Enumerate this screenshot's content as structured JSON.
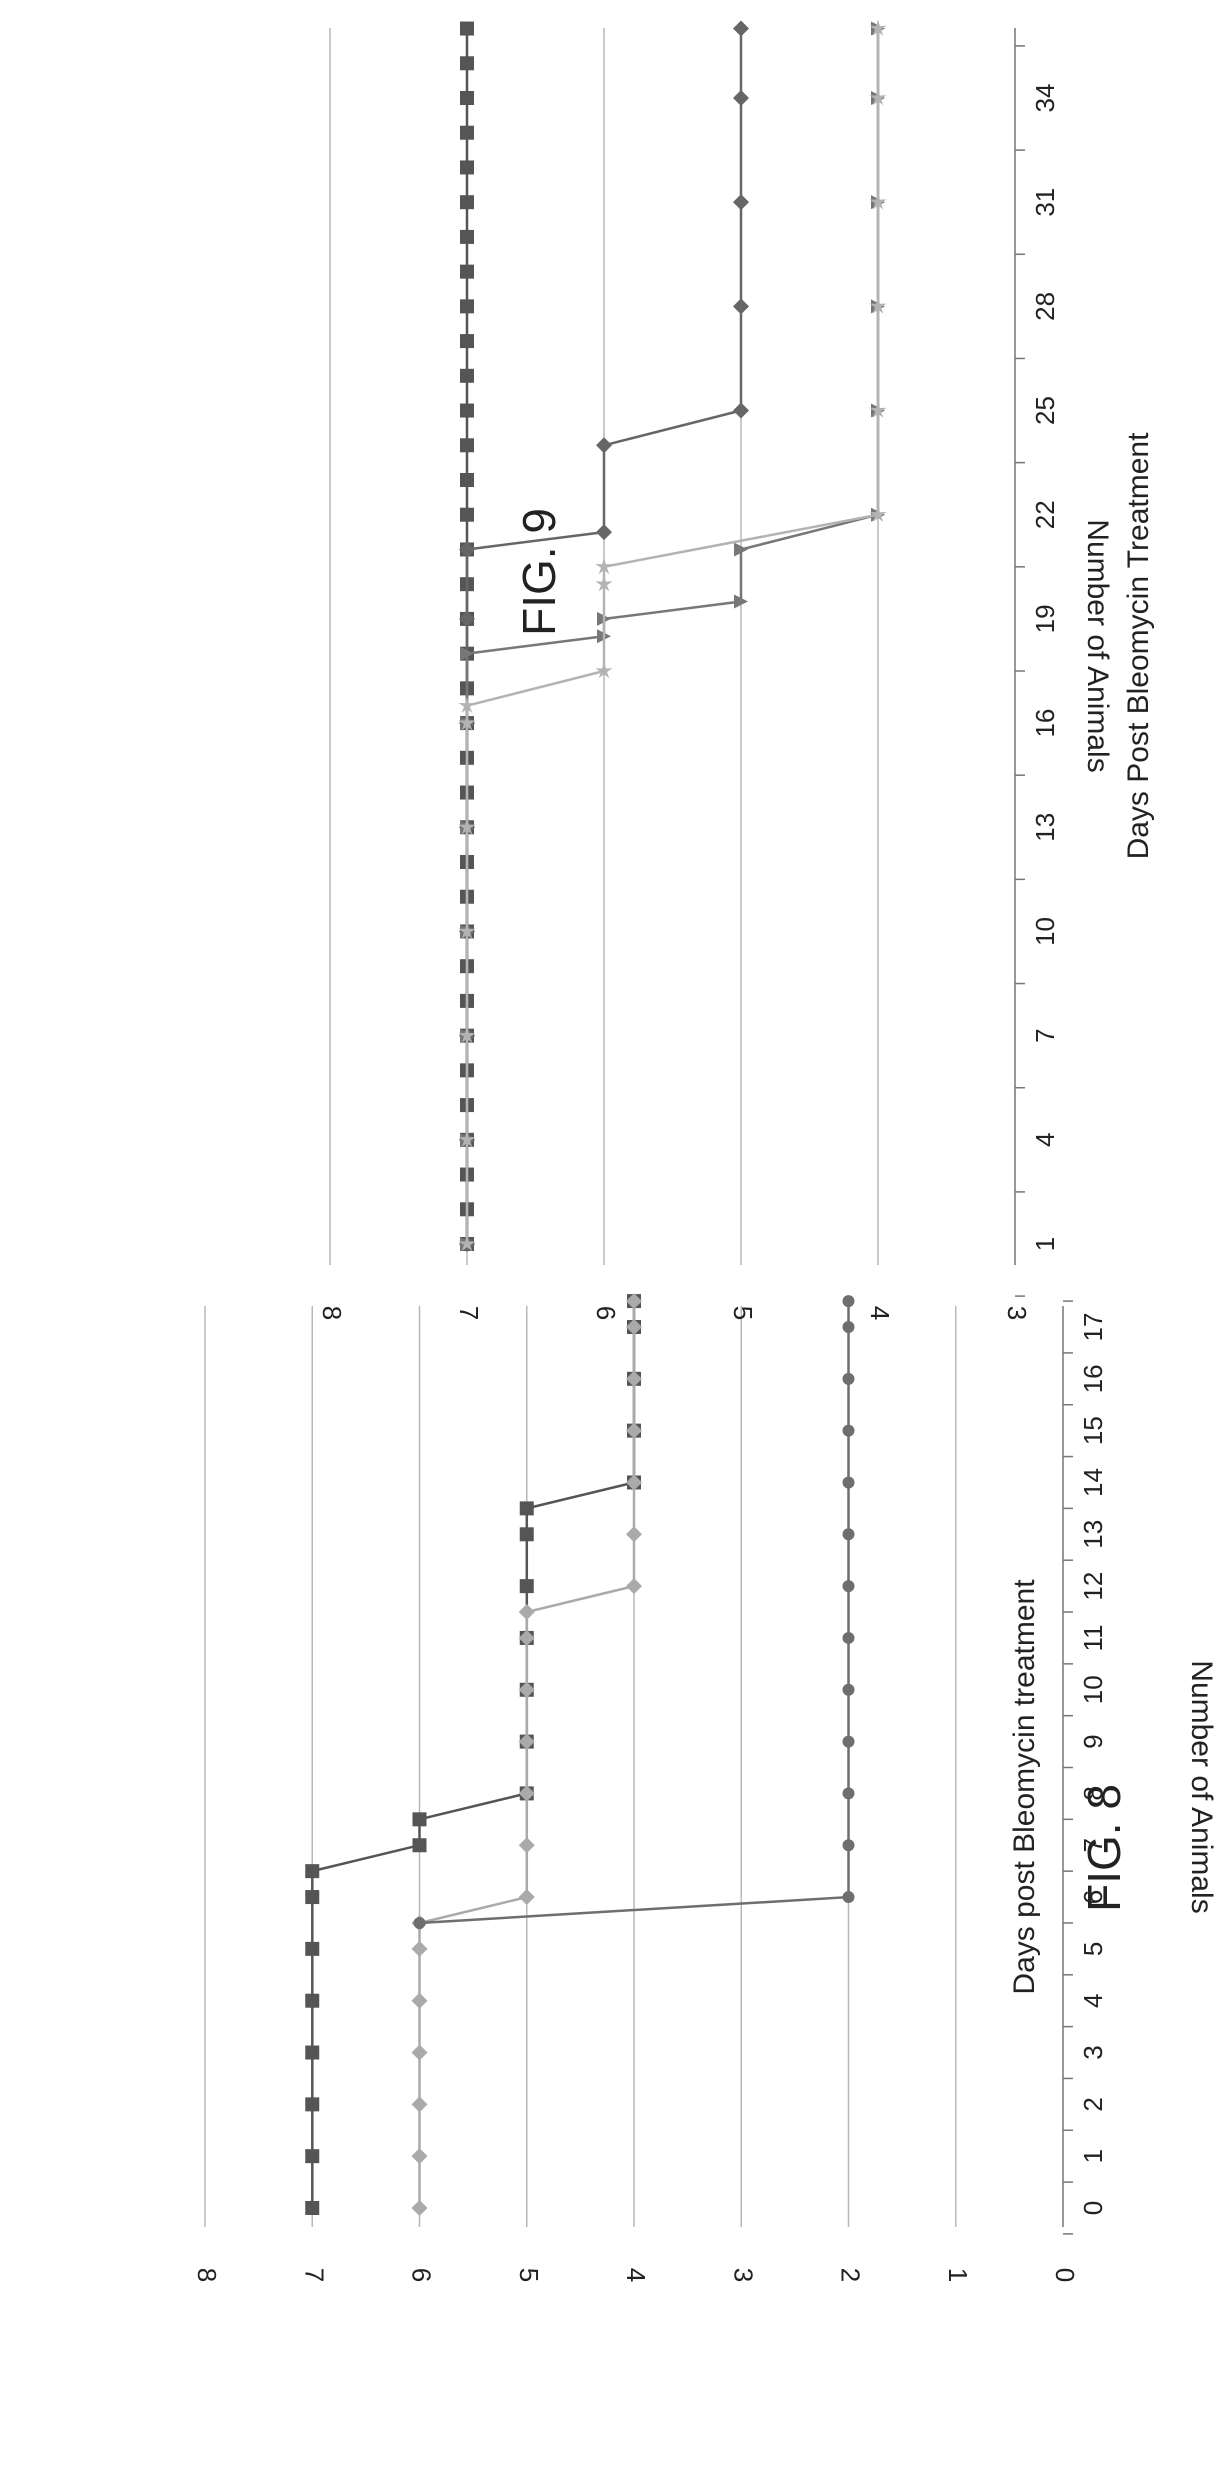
{
  "figures": [
    {
      "id": "fig8",
      "title": "FIG. 8",
      "chart_data": {
        "type": "line",
        "xlabel": "Days post Bleomycin treatment",
        "ylabel": "Number of Animals",
        "x": [
          0,
          1,
          2,
          3,
          4,
          5,
          6,
          7,
          8,
          9,
          10,
          11,
          12,
          13,
          14,
          15,
          16,
          17
        ],
        "ylim": [
          0,
          8
        ],
        "yticks": [
          0,
          1,
          2,
          3,
          4,
          5,
          6,
          7,
          8
        ],
        "grid": true,
        "series": [
          {
            "color": "#555555",
            "marker": "square",
            "points": [
              [
                0,
                7
              ],
              [
                1,
                7
              ],
              [
                2,
                7
              ],
              [
                3,
                7
              ],
              [
                4,
                7
              ],
              [
                5,
                7
              ],
              [
                6,
                7
              ],
              [
                6.5,
                7
              ],
              [
                7,
                6
              ],
              [
                7.5,
                6
              ],
              [
                8,
                5
              ],
              [
                9,
                5
              ],
              [
                10,
                5
              ],
              [
                11,
                5
              ],
              [
                12,
                5
              ],
              [
                13,
                5
              ],
              [
                13.5,
                5
              ],
              [
                14,
                4
              ],
              [
                15,
                4
              ],
              [
                16,
                4
              ],
              [
                17,
                4
              ],
              [
                17.5,
                4
              ]
            ]
          },
          {
            "color": "#aaaaaa",
            "marker": "diamond",
            "points": [
              [
                0,
                6
              ],
              [
                1,
                6
              ],
              [
                2,
                6
              ],
              [
                3,
                6
              ],
              [
                4,
                6
              ],
              [
                5,
                6
              ],
              [
                5.5,
                6
              ],
              [
                6,
                5
              ],
              [
                7,
                5
              ],
              [
                8,
                5
              ],
              [
                9,
                5
              ],
              [
                10,
                5
              ],
              [
                11,
                5
              ],
              [
                11.5,
                5
              ],
              [
                12,
                4
              ],
              [
                13,
                4
              ],
              [
                14,
                4
              ],
              [
                15,
                4
              ],
              [
                16,
                4
              ],
              [
                17,
                4
              ],
              [
                17.5,
                4
              ]
            ]
          },
          {
            "color": "#6e6e6e",
            "marker": "dot",
            "points": [
              [
                5.5,
                6
              ],
              [
                6,
                2
              ],
              [
                7,
                2
              ],
              [
                8,
                2
              ],
              [
                9,
                2
              ],
              [
                10,
                2
              ],
              [
                11,
                2
              ],
              [
                12,
                2
              ],
              [
                13,
                2
              ],
              [
                14,
                2
              ],
              [
                15,
                2
              ],
              [
                16,
                2
              ],
              [
                17,
                2
              ],
              [
                17.5,
                2
              ]
            ]
          }
        ]
      }
    },
    {
      "id": "fig9",
      "title": "FIG. 9",
      "chart_data": {
        "type": "line",
        "xlabel": "Days Post Bleomycin Treatment",
        "ylabel": "Number of Animals",
        "x": [
          1,
          4,
          7,
          10,
          13,
          16,
          19,
          22,
          25,
          28,
          31,
          34
        ],
        "ylim": [
          3,
          8
        ],
        "yticks": [
          3,
          4,
          5,
          6,
          7,
          8
        ],
        "grid": true,
        "series": [
          {
            "color": "#555555",
            "marker": "square",
            "points": [
              [
                1,
                7
              ],
              [
                2,
                7
              ],
              [
                3,
                7
              ],
              [
                4,
                7
              ],
              [
                5,
                7
              ],
              [
                6,
                7
              ],
              [
                7,
                7
              ],
              [
                8,
                7
              ],
              [
                9,
                7
              ],
              [
                10,
                7
              ],
              [
                11,
                7
              ],
              [
                12,
                7
              ],
              [
                13,
                7
              ],
              [
                14,
                7
              ],
              [
                15,
                7
              ],
              [
                16,
                7
              ],
              [
                17,
                7
              ],
              [
                18,
                7
              ],
              [
                19,
                7
              ],
              [
                20,
                7
              ],
              [
                21,
                7
              ],
              [
                22,
                7
              ],
              [
                23,
                7
              ],
              [
                24,
                7
              ],
              [
                25,
                7
              ],
              [
                26,
                7
              ],
              [
                27,
                7
              ],
              [
                28,
                7
              ],
              [
                29,
                7
              ],
              [
                30,
                7
              ],
              [
                31,
                7
              ],
              [
                32,
                7
              ],
              [
                33,
                7
              ],
              [
                34,
                7
              ],
              [
                35,
                7
              ],
              [
                36,
                7
              ]
            ]
          },
          {
            "color": "#666666",
            "marker": "diamond",
            "points": [
              [
                1,
                7
              ],
              [
                4,
                7
              ],
              [
                7,
                7
              ],
              [
                10,
                7
              ],
              [
                13,
                7
              ],
              [
                16,
                7
              ],
              [
                19,
                7
              ],
              [
                21,
                7
              ],
              [
                21.5,
                6
              ],
              [
                24,
                6
              ],
              [
                25,
                5
              ],
              [
                28,
                5
              ],
              [
                31,
                5
              ],
              [
                34,
                5
              ],
              [
                36,
                5
              ]
            ]
          },
          {
            "color": "#777777",
            "marker": "triangle",
            "points": [
              [
                1,
                7
              ],
              [
                4,
                7
              ],
              [
                7,
                7
              ],
              [
                10,
                7
              ],
              [
                13,
                7
              ],
              [
                16,
                7
              ],
              [
                18,
                7
              ],
              [
                18.5,
                6
              ],
              [
                19,
                6
              ],
              [
                19.5,
                5
              ],
              [
                21,
                5
              ],
              [
                22,
                4
              ],
              [
                25,
                4
              ],
              [
                28,
                4
              ],
              [
                31,
                4
              ],
              [
                34,
                4
              ],
              [
                36,
                4
              ]
            ]
          },
          {
            "color": "#b3b3b3",
            "marker": "star",
            "points": [
              [
                1,
                7
              ],
              [
                4,
                7
              ],
              [
                7,
                7
              ],
              [
                10,
                7
              ],
              [
                13,
                7
              ],
              [
                16,
                7
              ],
              [
                16.5,
                7
              ],
              [
                17.5,
                6
              ],
              [
                20,
                6
              ],
              [
                20.5,
                6
              ],
              [
                22,
                4
              ],
              [
                25,
                4
              ],
              [
                28,
                4
              ],
              [
                31,
                4
              ],
              [
                34,
                4
              ],
              [
                36,
                4
              ]
            ]
          }
        ]
      }
    }
  ]
}
